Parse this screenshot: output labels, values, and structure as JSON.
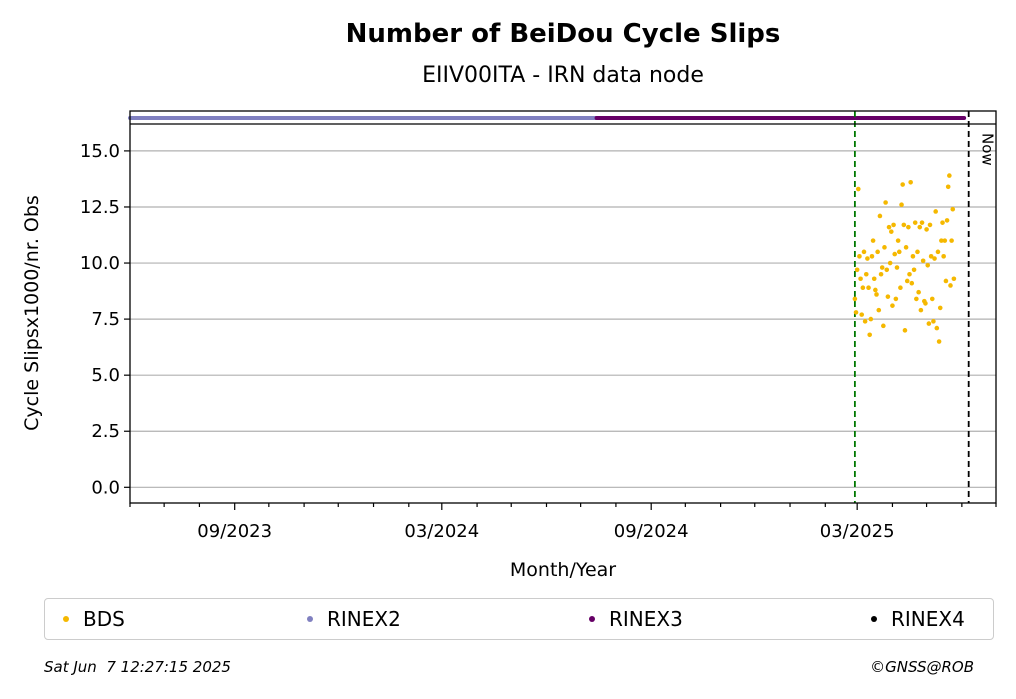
{
  "chart_data": {
    "type": "scatter",
    "title": "Number of BeiDou Cycle Slips",
    "subtitle": "EIIV00ITA - IRN data node",
    "xlabel": "Month/Year",
    "ylabel": "Cycle Slipsx1000/nr. Obs",
    "x_tick_labels": [
      "09/2023",
      "03/2024",
      "09/2024",
      "03/2025"
    ],
    "x_ticks": [
      "2023-09-01",
      "2024-03-01",
      "2024-09-01",
      "2025-03-01"
    ],
    "xlim": [
      "2023-06-01",
      "2025-07-01"
    ],
    "y_tick_labels": [
      "0.0",
      "2.5",
      "5.0",
      "7.5",
      "10.0",
      "12.5",
      "15.0"
    ],
    "y_ticks": [
      0,
      2.5,
      5,
      7.5,
      10,
      12.5,
      15
    ],
    "ylim": [
      -0.7,
      16.2
    ],
    "grid": "horizontal",
    "vlines": [
      {
        "x": "2025-02-27",
        "color": "#007700",
        "style": "dashed"
      },
      {
        "x": "2025-06-07",
        "color": "#000000",
        "style": "dashed",
        "label": "Now"
      }
    ],
    "rinex_bars": [
      {
        "name": "RINEX2",
        "from": "2023-06-01",
        "to": "2024-07-15",
        "color": "#8080c0"
      },
      {
        "name": "RINEX3",
        "from": "2024-07-15",
        "to": "2025-06-03",
        "color": "#660066"
      }
    ],
    "series": [
      {
        "name": "BDS",
        "color": "#f5b800",
        "points": [
          [
            "2025-02-27",
            8.4
          ],
          [
            "2025-02-28",
            7.8
          ],
          [
            "2025-03-01",
            9.7
          ],
          [
            "2025-03-02",
            13.3
          ],
          [
            "2025-03-03",
            10.3
          ],
          [
            "2025-03-04",
            9.3
          ],
          [
            "2025-03-05",
            7.7
          ],
          [
            "2025-03-06",
            8.9
          ],
          [
            "2025-03-07",
            10.5
          ],
          [
            "2025-03-08",
            7.4
          ],
          [
            "2025-03-09",
            9.5
          ],
          [
            "2025-03-10",
            10.2
          ],
          [
            "2025-03-11",
            8.9
          ],
          [
            "2025-03-12",
            6.8
          ],
          [
            "2025-03-13",
            7.5
          ],
          [
            "2025-03-14",
            10.3
          ],
          [
            "2025-03-15",
            11.0
          ],
          [
            "2025-03-16",
            9.3
          ],
          [
            "2025-03-17",
            8.8
          ],
          [
            "2025-03-18",
            8.6
          ],
          [
            "2025-03-19",
            10.5
          ],
          [
            "2025-03-20",
            7.9
          ],
          [
            "2025-03-21",
            12.1
          ],
          [
            "2025-03-22",
            9.5
          ],
          [
            "2025-03-23",
            9.8
          ],
          [
            "2025-03-24",
            7.2
          ],
          [
            "2025-03-25",
            10.7
          ],
          [
            "2025-03-26",
            12.7
          ],
          [
            "2025-03-27",
            9.7
          ],
          [
            "2025-03-28",
            8.5
          ],
          [
            "2025-03-29",
            11.6
          ],
          [
            "2025-03-30",
            10.0
          ],
          [
            "2025-03-31",
            11.4
          ],
          [
            "2025-04-01",
            8.1
          ],
          [
            "2025-04-02",
            11.7
          ],
          [
            "2025-04-03",
            10.4
          ],
          [
            "2025-04-04",
            8.4
          ],
          [
            "2025-04-05",
            9.8
          ],
          [
            "2025-04-06",
            11.0
          ],
          [
            "2025-04-07",
            10.5
          ],
          [
            "2025-04-08",
            8.9
          ],
          [
            "2025-04-09",
            12.6
          ],
          [
            "2025-04-10",
            13.5
          ],
          [
            "2025-04-11",
            11.7
          ],
          [
            "2025-04-12",
            7.0
          ],
          [
            "2025-04-13",
            10.7
          ],
          [
            "2025-04-14",
            9.2
          ],
          [
            "2025-04-15",
            11.6
          ],
          [
            "2025-04-16",
            9.5
          ],
          [
            "2025-04-17",
            13.6
          ],
          [
            "2025-04-18",
            9.1
          ],
          [
            "2025-04-19",
            10.3
          ],
          [
            "2025-04-20",
            9.7
          ],
          [
            "2025-04-21",
            11.8
          ],
          [
            "2025-04-22",
            8.4
          ],
          [
            "2025-04-23",
            10.5
          ],
          [
            "2025-04-24",
            8.7
          ],
          [
            "2025-04-25",
            11.6
          ],
          [
            "2025-04-26",
            7.9
          ],
          [
            "2025-04-27",
            11.8
          ],
          [
            "2025-04-28",
            10.1
          ],
          [
            "2025-04-29",
            8.3
          ],
          [
            "2025-04-30",
            8.2
          ],
          [
            "2025-05-01",
            11.5
          ],
          [
            "2025-05-02",
            9.9
          ],
          [
            "2025-05-03",
            7.3
          ],
          [
            "2025-05-04",
            11.7
          ],
          [
            "2025-05-05",
            10.3
          ],
          [
            "2025-05-06",
            8.4
          ],
          [
            "2025-05-07",
            7.4
          ],
          [
            "2025-05-08",
            10.2
          ],
          [
            "2025-05-09",
            12.3
          ],
          [
            "2025-05-10",
            7.1
          ],
          [
            "2025-05-11",
            10.5
          ],
          [
            "2025-05-12",
            6.5
          ],
          [
            "2025-05-13",
            8.0
          ],
          [
            "2025-05-14",
            11.0
          ],
          [
            "2025-05-15",
            11.8
          ],
          [
            "2025-05-16",
            10.3
          ],
          [
            "2025-05-17",
            11.0
          ],
          [
            "2025-05-18",
            9.2
          ],
          [
            "2025-05-19",
            11.9
          ],
          [
            "2025-05-20",
            13.4
          ],
          [
            "2025-05-21",
            13.9
          ],
          [
            "2025-05-22",
            9.0
          ],
          [
            "2025-05-23",
            11.0
          ],
          [
            "2025-05-24",
            12.4
          ],
          [
            "2025-05-25",
            9.3
          ]
        ]
      }
    ]
  },
  "legend": [
    {
      "name": "BDS",
      "color": "#f5b800"
    },
    {
      "name": "RINEX2",
      "color": "#8080c0"
    },
    {
      "name": "RINEX3",
      "color": "#660066"
    },
    {
      "name": "RINEX4",
      "color": "#000000"
    }
  ],
  "footer": {
    "timestamp": "Sat Jun  7 12:27:15 2025",
    "credit": "©GNSS@ROB"
  }
}
